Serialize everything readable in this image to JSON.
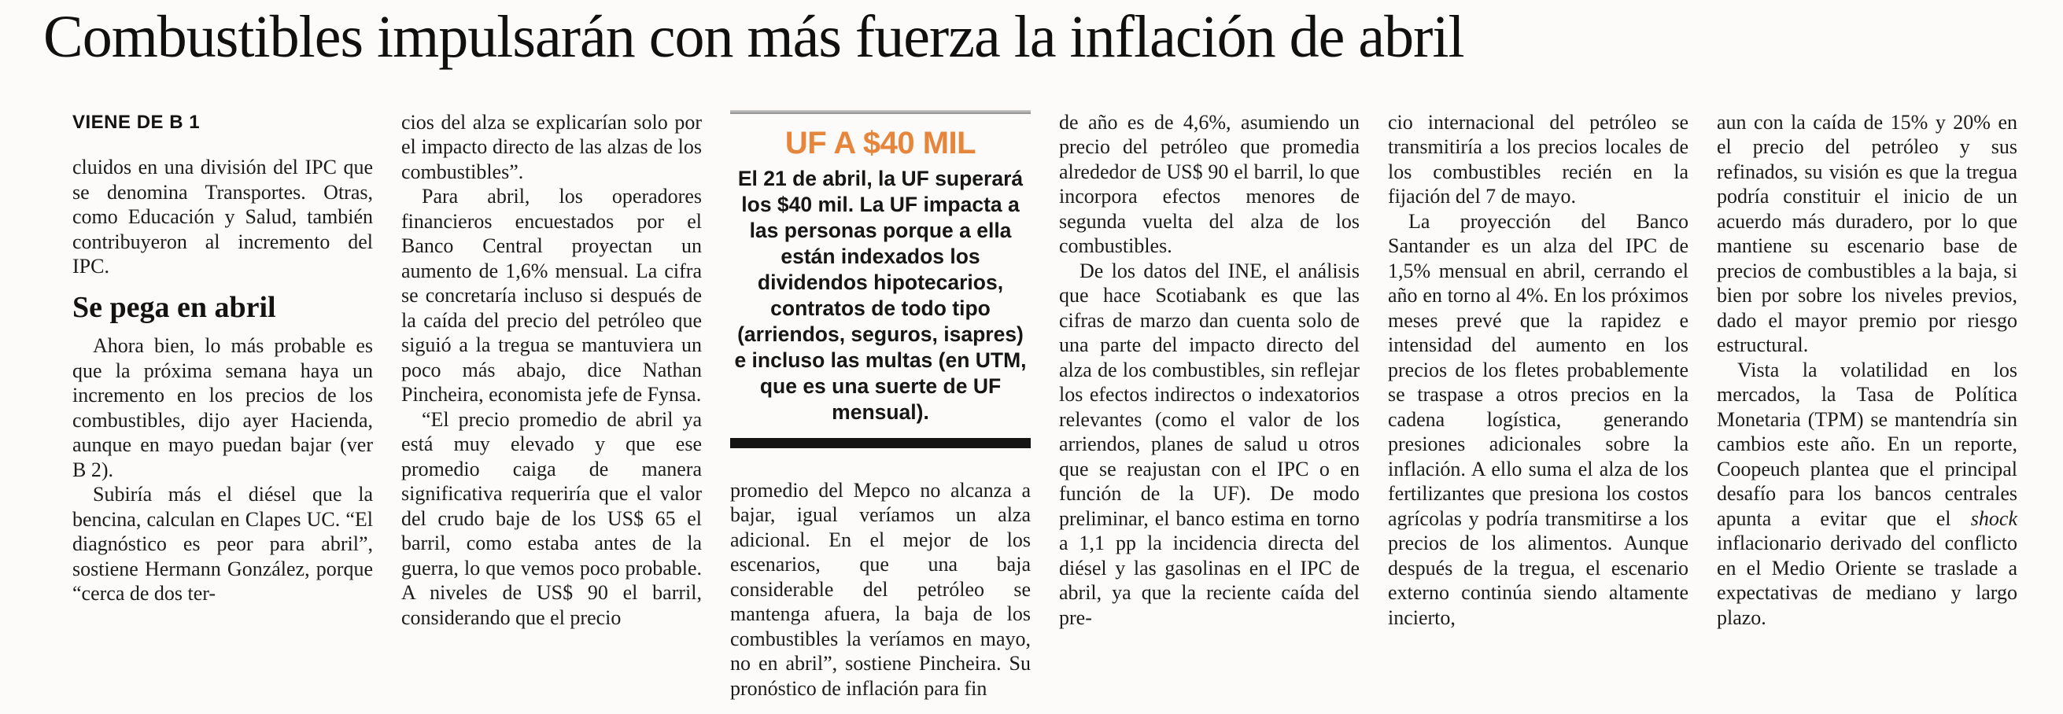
{
  "headline": "Combustibles impulsarán con más fuerza la inflación de abril",
  "kicker": "VIENE DE B 1",
  "infobox": {
    "accent_color": "#E6863C",
    "title": "UF A $40 MIL",
    "body": "El 21 de abril, la UF superará los $40 mil. La UF impacta a las personas porque a ella están indexados los dividendos hipotecarios, contratos de todo tipo (arriendos, seguros, isapres) e incluso las multas (en UTM, que es una suerte de UF mensual)."
  },
  "columns": {
    "col1": {
      "p1": "cluidos en una división del IPC que se denomina Transportes. Otras, como Educación y Salud, también contribuyeron al incremento del IPC.",
      "subhead": "Se pega en abril",
      "p2": "Ahora bien, lo más probable es que la próxima semana haya un incremento en los precios de los combustibles, dijo ayer Hacienda, aunque en mayo puedan bajar (ver B 2).",
      "p3": "Subiría más el diésel que la bencina, calculan en Clapes UC. “El diagnóstico es peor para abril”, sostiene Hermann González, porque “cerca de dos ter-"
    },
    "col2": {
      "p1": "cios del alza se explicarían solo por el impacto directo de las alzas de los combustibles”.",
      "p2": "Para abril, los operadores financieros encuestados por el Banco Central proyectan un aumento de 1,6% mensual. La cifra se concretaría incluso si después de la caída del precio del petróleo que siguió a la tregua se mantuviera un poco más abajo, dice Nathan Pincheira, economista jefe de Fynsa.",
      "p3": "“El precio promedio de abril ya está muy elevado y que ese promedio caiga de manera significativa requeriría que el valor del crudo baje de los US$ 65 el barril, como estaba antes de la guerra, lo que vemos poco probable. A niveles de US$ 90 el barril, considerando que el precio"
    },
    "col3": {
      "p1": "promedio del Mepco no alcanza a bajar, igual veríamos un alza adicional. En el mejor de los escenarios, que una baja considerable del petróleo se mantenga afuera, la baja de los combustibles la veríamos en mayo, no en abril”, sostiene Pincheira. Su pronóstico de inflación para fin"
    },
    "col4": {
      "p1": "de año es de 4,6%, asumiendo un precio del petróleo que promedia alrededor de US$ 90 el barril, lo que incorpora efectos menores de segunda vuelta del alza de los combustibles.",
      "p2": "De los datos del INE, el análisis que hace Scotiabank es que las cifras de marzo dan cuenta solo de una parte del impacto directo del alza de los combustibles, sin reflejar los efectos indirectos o indexatorios relevantes (como el valor de los arriendos, planes de salud u otros que se reajustan con el IPC o en función de la UF). De modo preliminar, el banco estima en torno a 1,1 pp la incidencia directa del diésel y las gasolinas en el IPC de abril, ya que la reciente caída del pre-"
    },
    "col5": {
      "p1": "cio internacional del petróleo se transmitiría a los precios locales de los combustibles recién en la fijación del 7 de mayo.",
      "p2": "La proyección del Banco Santander es un alza del IPC de 1,5% mensual en abril, cerrando el año en torno al 4%. En los próximos meses prevé que la rapidez e intensidad del aumento en los precios de los fletes probablemente se traspase a otros precios en la cadena logística, generando presiones adicionales sobre la inflación. A ello suma el alza de los fertilizantes que presiona los costos agrícolas y podría transmitirse a los precios de los alimentos. Aunque después de la tregua, el escenario externo continúa siendo altamente incierto,"
    },
    "col6": {
      "p1": "aun con la caída de 15% y 20% en el precio del petróleo y sus refinados, su visión es que la tregua podría constituir el inicio de un acuerdo más duradero, por lo que mantiene su escenario base de precios de combustibles a la baja, si bien por sobre los niveles previos, dado el mayor premio por riesgo estructural.",
      "p2_pre": "Vista la volatilidad en los mercados, la Tasa de Política Monetaria (TPM) se mantendría sin cambios este año. En un reporte, Coopeuch plantea que el principal desafío para los bancos centrales apunta a evitar que el ",
      "p2_italic": "shock",
      "p2_post": " inflacionario derivado del conflicto en el Medio Oriente se traslade a expectativas de mediano y largo plazo."
    }
  }
}
